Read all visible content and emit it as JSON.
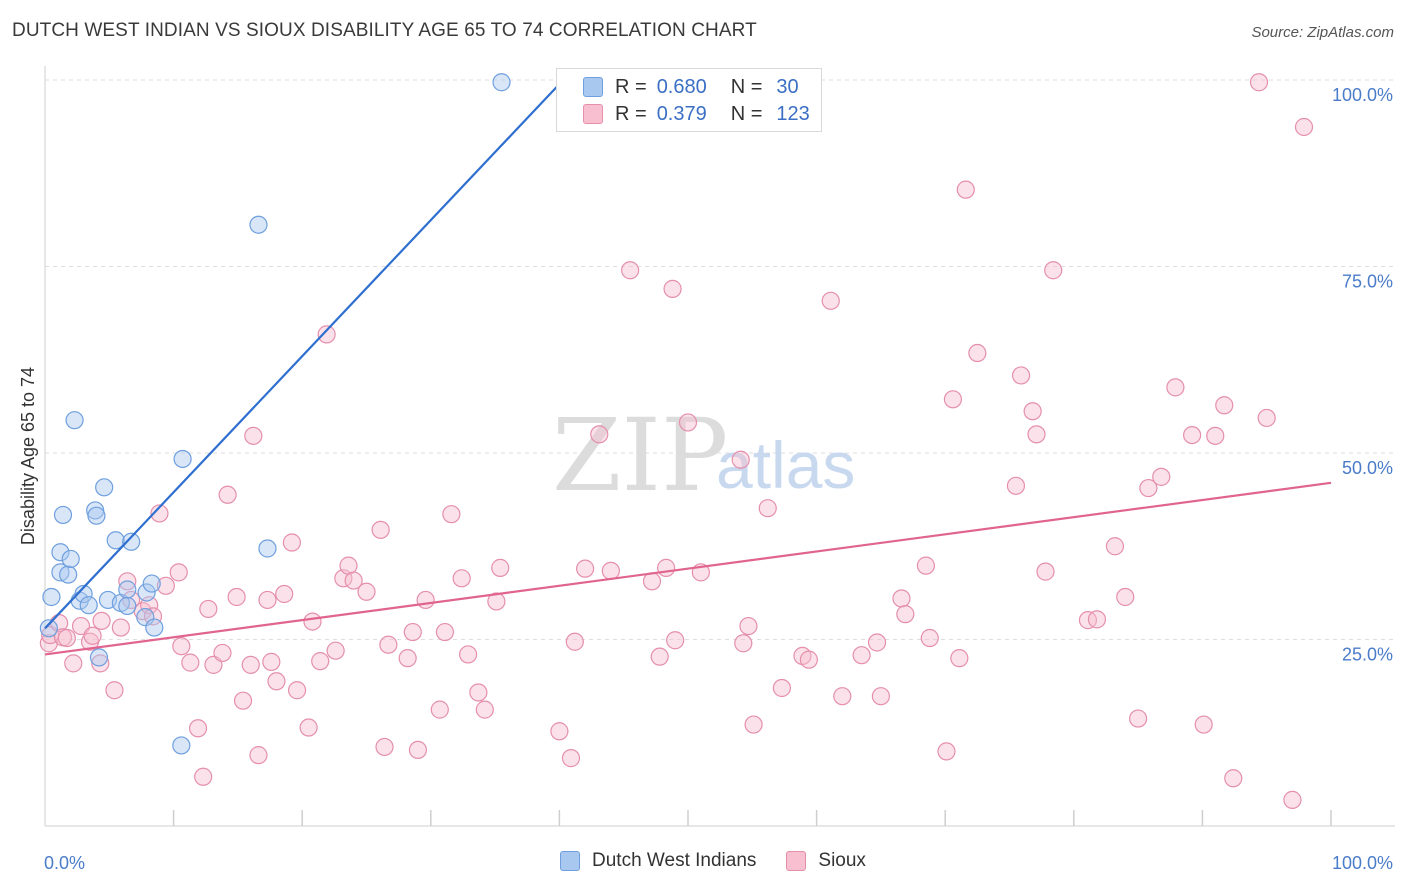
{
  "header": {
    "title": "DUTCH WEST INDIAN VS SIOUX DISABILITY AGE 65 TO 74 CORRELATION CHART",
    "source": "Source: ZipAtlas.com"
  },
  "watermark": {
    "zip": "ZIP",
    "atlas": "atlas"
  },
  "legend": {
    "r_label": "R =",
    "n_label": "N =",
    "rows": [
      {
        "r": "0.680",
        "n": "30",
        "color": "#a8c8f0",
        "border": "#6f9fde"
      },
      {
        "r": "0.379",
        "n": "123",
        "color": "#f7bfd0",
        "border": "#e58fab"
      }
    ]
  },
  "bottom_legend": [
    {
      "label": "Dutch West Indians",
      "color": "#a8c8f0",
      "border": "#6f9fde"
    },
    {
      "label": "Sioux",
      "color": "#f7bfd0",
      "border": "#e58fab"
    }
  ],
  "chart_data": {
    "type": "scatter",
    "title": "DUTCH WEST INDIAN VS SIOUX DISABILITY AGE 65 TO 74 CORRELATION CHART",
    "xlabel": "",
    "ylabel": "Disability Age 65 to 74",
    "xlim": [
      0,
      100
    ],
    "ylim": [
      0,
      100
    ],
    "x_tick_labels": [
      "0.0%",
      "100.0%"
    ],
    "y_tick_labels": [
      "25.0%",
      "50.0%",
      "75.0%",
      "100.0%"
    ],
    "y_ticks": [
      25,
      50,
      75,
      100
    ],
    "grid": true,
    "legend_position": "top-center",
    "series": [
      {
        "name": "Dutch West Indians",
        "color": "#6f9fde",
        "fill": "#a8c8f0",
        "r": 0.68,
        "n": 30,
        "trend": {
          "x": [
            0,
            40.3
          ],
          "y": [
            26.5,
            100
          ]
        },
        "points": [
          [
            0.3,
            26.5
          ],
          [
            0.5,
            30.7
          ],
          [
            1.2,
            34.0
          ],
          [
            1.2,
            36.7
          ],
          [
            1.4,
            41.7
          ],
          [
            1.8,
            33.7
          ],
          [
            2.0,
            35.8
          ],
          [
            2.3,
            54.4
          ],
          [
            2.7,
            30.2
          ],
          [
            3.0,
            31.1
          ],
          [
            3.4,
            29.6
          ],
          [
            3.9,
            42.3
          ],
          [
            4.0,
            41.6
          ],
          [
            4.2,
            22.6
          ],
          [
            4.6,
            45.4
          ],
          [
            4.9,
            30.3
          ],
          [
            5.5,
            38.3
          ],
          [
            5.9,
            29.9
          ],
          [
            6.4,
            29.5
          ],
          [
            6.4,
            31.7
          ],
          [
            6.7,
            38.1
          ],
          [
            7.8,
            28.0
          ],
          [
            7.9,
            31.3
          ],
          [
            8.3,
            32.5
          ],
          [
            8.5,
            26.6
          ],
          [
            10.6,
            10.8
          ],
          [
            10.7,
            49.2
          ],
          [
            16.6,
            80.6
          ],
          [
            17.3,
            37.2
          ],
          [
            35.5,
            99.7
          ]
        ]
      },
      {
        "name": "Sioux",
        "color": "#e58fab",
        "fill": "#f7bfd0",
        "r": 0.379,
        "n": 123,
        "trend": {
          "x": [
            0,
            100
          ],
          "y": [
            23.0,
            46.0
          ]
        },
        "points": [
          [
            0.3,
            24.5
          ],
          [
            0.4,
            25.6
          ],
          [
            1.1,
            27.2
          ],
          [
            1.4,
            25.3
          ],
          [
            1.7,
            25.2
          ],
          [
            2.2,
            21.8
          ],
          [
            2.8,
            26.8
          ],
          [
            3.5,
            24.7
          ],
          [
            3.7,
            25.5
          ],
          [
            4.3,
            21.8
          ],
          [
            4.4,
            27.5
          ],
          [
            5.4,
            18.2
          ],
          [
            5.9,
            26.6
          ],
          [
            6.4,
            32.8
          ],
          [
            6.7,
            30.3
          ],
          [
            7.6,
            28.8
          ],
          [
            8.1,
            29.6
          ],
          [
            8.4,
            28.1
          ],
          [
            8.9,
            41.9
          ],
          [
            9.4,
            32.2
          ],
          [
            10.4,
            34.0
          ],
          [
            10.6,
            24.1
          ],
          [
            11.3,
            21.9
          ],
          [
            11.9,
            13.1
          ],
          [
            12.3,
            6.6
          ],
          [
            12.7,
            29.1
          ],
          [
            13.1,
            21.6
          ],
          [
            13.8,
            23.2
          ],
          [
            14.2,
            44.4
          ],
          [
            14.9,
            30.7
          ],
          [
            15.4,
            16.8
          ],
          [
            16.0,
            21.6
          ],
          [
            16.2,
            52.3
          ],
          [
            16.6,
            9.5
          ],
          [
            17.3,
            30.3
          ],
          [
            17.6,
            22.0
          ],
          [
            18.0,
            19.4
          ],
          [
            18.6,
            31.1
          ],
          [
            19.2,
            38.0
          ],
          [
            19.6,
            18.2
          ],
          [
            20.5,
            13.2
          ],
          [
            20.8,
            27.4
          ],
          [
            21.4,
            22.1
          ],
          [
            21.9,
            65.9
          ],
          [
            22.6,
            23.5
          ],
          [
            23.2,
            33.2
          ],
          [
            23.6,
            34.9
          ],
          [
            24.0,
            32.9
          ],
          [
            25.0,
            31.4
          ],
          [
            26.1,
            39.7
          ],
          [
            26.4,
            10.6
          ],
          [
            26.7,
            24.3
          ],
          [
            28.2,
            22.5
          ],
          [
            28.6,
            26.0
          ],
          [
            29.0,
            10.2
          ],
          [
            29.6,
            30.3
          ],
          [
            30.7,
            15.6
          ],
          [
            31.1,
            26.0
          ],
          [
            31.6,
            41.8
          ],
          [
            32.4,
            33.2
          ],
          [
            32.9,
            23.0
          ],
          [
            33.7,
            17.9
          ],
          [
            34.2,
            15.6
          ],
          [
            35.1,
            30.1
          ],
          [
            35.4,
            34.6
          ],
          [
            40.0,
            12.7
          ],
          [
            40.9,
            9.1
          ],
          [
            41.2,
            24.7
          ],
          [
            42.0,
            34.5
          ],
          [
            43.1,
            52.5
          ],
          [
            44.0,
            34.2
          ],
          [
            45.5,
            74.5
          ],
          [
            47.2,
            32.8
          ],
          [
            47.8,
            22.7
          ],
          [
            48.3,
            34.6
          ],
          [
            48.8,
            72.0
          ],
          [
            49.0,
            24.9
          ],
          [
            50.0,
            54.1
          ],
          [
            51.0,
            34.0
          ],
          [
            54.1,
            49.1
          ],
          [
            54.3,
            24.5
          ],
          [
            54.7,
            26.8
          ],
          [
            55.1,
            13.6
          ],
          [
            56.2,
            42.6
          ],
          [
            57.3,
            18.5
          ],
          [
            58.9,
            22.8
          ],
          [
            59.4,
            22.3
          ],
          [
            61.1,
            70.4
          ],
          [
            62.0,
            17.4
          ],
          [
            63.5,
            22.9
          ],
          [
            64.7,
            24.6
          ],
          [
            65.0,
            17.4
          ],
          [
            66.6,
            30.5
          ],
          [
            66.9,
            28.4
          ],
          [
            68.5,
            34.9
          ],
          [
            68.8,
            25.2
          ],
          [
            70.1,
            10.0
          ],
          [
            70.6,
            57.2
          ],
          [
            71.1,
            22.5
          ],
          [
            71.6,
            85.3
          ],
          [
            72.5,
            63.4
          ],
          [
            75.5,
            45.6
          ],
          [
            75.9,
            60.4
          ],
          [
            76.8,
            55.6
          ],
          [
            77.1,
            52.5
          ],
          [
            77.8,
            34.1
          ],
          [
            78.4,
            74.5
          ],
          [
            81.1,
            27.6
          ],
          [
            81.8,
            27.7
          ],
          [
            83.2,
            37.5
          ],
          [
            84.0,
            30.7
          ],
          [
            85.0,
            14.4
          ],
          [
            85.8,
            45.3
          ],
          [
            86.8,
            46.8
          ],
          [
            87.9,
            58.8
          ],
          [
            89.2,
            52.4
          ],
          [
            90.1,
            13.6
          ],
          [
            91.0,
            52.3
          ],
          [
            91.7,
            56.4
          ],
          [
            92.4,
            6.4
          ],
          [
            94.4,
            99.7
          ],
          [
            95.0,
            54.7
          ],
          [
            97.9,
            93.7
          ],
          [
            97.0,
            3.5
          ]
        ]
      }
    ]
  }
}
